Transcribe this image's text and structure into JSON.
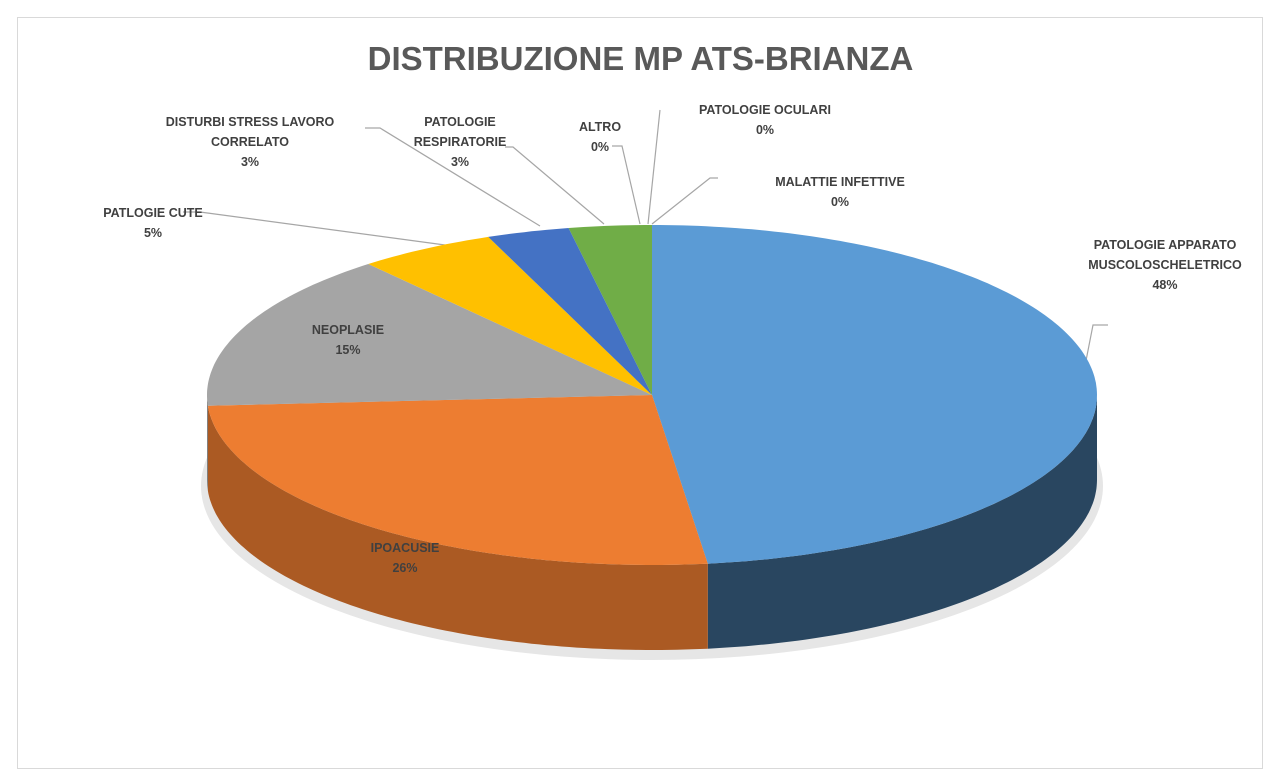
{
  "chart_data": {
    "type": "pie",
    "title": "DISTRIBUZIONE MP ATS-BRIANZA",
    "categories": [
      "PATOLOGIE APPARATO MUSCOLOSCHELETRICO",
      "IPOACUSIE",
      "NEOPLASIE",
      "PATLOGIE CUTE",
      "DISTURBI STRESS LAVORO CORRELATO",
      "PATOLOGIE RESPIRATORIE",
      "ALTRO",
      "PATOLOGIE OCULARI",
      "MALATTIE INFETTIVE"
    ],
    "values": [
      48,
      26,
      15,
      5,
      3,
      3,
      0,
      0,
      0
    ],
    "value_labels": [
      "48%",
      "26%",
      "15%",
      "5%",
      "3%",
      "3%",
      "0%",
      "0%",
      "0%"
    ],
    "colors": [
      "#5b9bd5",
      "#ed7d31",
      "#a5a5a5",
      "#ffc000",
      "#4472c4",
      "#70ad47",
      "#264478",
      "#9e480e",
      "#636363"
    ]
  }
}
